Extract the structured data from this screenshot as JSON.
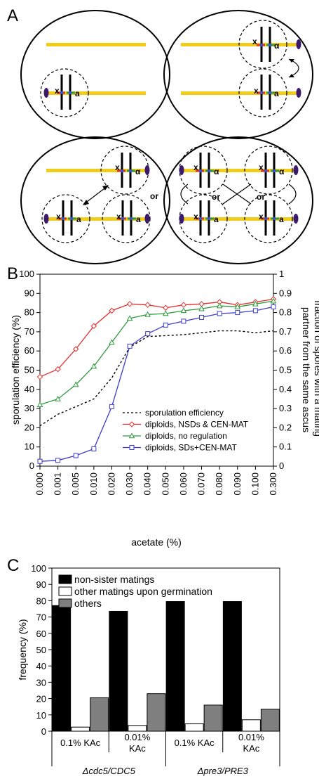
{
  "panel_letters": {
    "a": "A",
    "b": "B",
    "c": "C"
  },
  "panel_a": {
    "label_x": "x",
    "label_a": "a",
    "label_alpha": "α",
    "label_or": "or"
  },
  "colors": {
    "chromosome": "#f2cc1a",
    "centromere_red": "#e53030",
    "centromere_green": "#2aa04a",
    "centromere_blue": "#3a4fd0",
    "spb": "#3b1a6e",
    "sporulation": "#000000",
    "nsd": "#e03030",
    "noreg": "#2c9a3c",
    "sd": "#3c3cc8",
    "bar_black": "#000000",
    "bar_white": "#ffffff",
    "bar_gray": "#7f7f7f"
  },
  "chart_data": [
    {
      "type": "line",
      "x": [
        "0.000",
        "0.001",
        "0.005",
        "0.010",
        "0.020",
        "0.030",
        "0.040",
        "0.050",
        "0.060",
        "0.070",
        "0.080",
        "0.090",
        "0.100",
        "0.300"
      ],
      "xlabel": "acetate (%)",
      "ylabel": "sporulation efficiency (%)",
      "ylabel_right": "fraction of spores with a mating partner from the same ascus",
      "ylim": [
        0,
        100
      ],
      "yticks": [
        0,
        10,
        20,
        30,
        40,
        50,
        60,
        70,
        80,
        90,
        100
      ],
      "ylim_right": [
        0,
        1
      ],
      "yticks_right": [
        "0",
        "0.1",
        "0.2",
        "0.3",
        "0.4",
        "0.5",
        "0.6",
        "0.7",
        "0.8",
        "0.9",
        "1"
      ],
      "legend_position": "inside-right",
      "series": [
        {
          "name": "sporulation efficiency",
          "axis": "left",
          "style": "dashed",
          "marker": "none",
          "values": [
            21,
            27,
            31,
            35,
            46,
            62,
            67.5,
            68,
            68.5,
            69.5,
            70.5,
            70.5,
            69.5,
            70.5
          ]
        },
        {
          "name": "diploids, NSDs & CEN-MAT",
          "axis": "right",
          "style": "solid",
          "marker": "diamond",
          "values": [
            0.465,
            0.505,
            0.61,
            0.73,
            0.81,
            0.845,
            0.84,
            0.825,
            0.84,
            0.845,
            0.855,
            0.84,
            0.855,
            0.87
          ]
        },
        {
          "name": "diploids, no regulation",
          "axis": "right",
          "style": "solid",
          "marker": "triangle",
          "values": [
            0.32,
            0.35,
            0.425,
            0.52,
            0.645,
            0.77,
            0.79,
            0.795,
            0.81,
            0.82,
            0.835,
            0.83,
            0.845,
            0.86
          ]
        },
        {
          "name": "diploids, SDs+CEN-MAT",
          "axis": "right",
          "style": "solid",
          "marker": "square",
          "values": [
            0.025,
            0.03,
            0.055,
            0.09,
            0.31,
            0.625,
            0.69,
            0.735,
            0.755,
            0.775,
            0.795,
            0.8,
            0.81,
            0.83
          ]
        }
      ]
    },
    {
      "type": "bar",
      "ylabel": "frequency (%)",
      "ylim": [
        0,
        100
      ],
      "yticks": [
        0,
        10,
        20,
        30,
        40,
        50,
        60,
        70,
        80,
        90,
        100
      ],
      "legend_position": "top-left",
      "categories": [
        "0.1% KAc",
        "0.01% KAc",
        "0.1% KAc",
        "0.01% KAc"
      ],
      "category_lines": [
        [
          "0.1% KAc"
        ],
        [
          "0.01%",
          "KAc"
        ],
        [
          "0.1% KAc"
        ],
        [
          "0.01%",
          "KAc"
        ]
      ],
      "groups": [
        {
          "label": "Δcdc5/CDC5",
          "categories": [
            0,
            1
          ]
        },
        {
          "label": "Δpre3/PRE3",
          "categories": [
            2,
            3
          ]
        }
      ],
      "series": [
        {
          "name": "non-sister matings",
          "values": [
            77,
            73.5,
            79.5,
            79.5
          ]
        },
        {
          "name": "other matings upon germination",
          "values": [
            2.5,
            3.5,
            4.5,
            7
          ]
        },
        {
          "name": "others",
          "values": [
            20.5,
            23,
            16,
            13.5
          ]
        }
      ]
    }
  ]
}
